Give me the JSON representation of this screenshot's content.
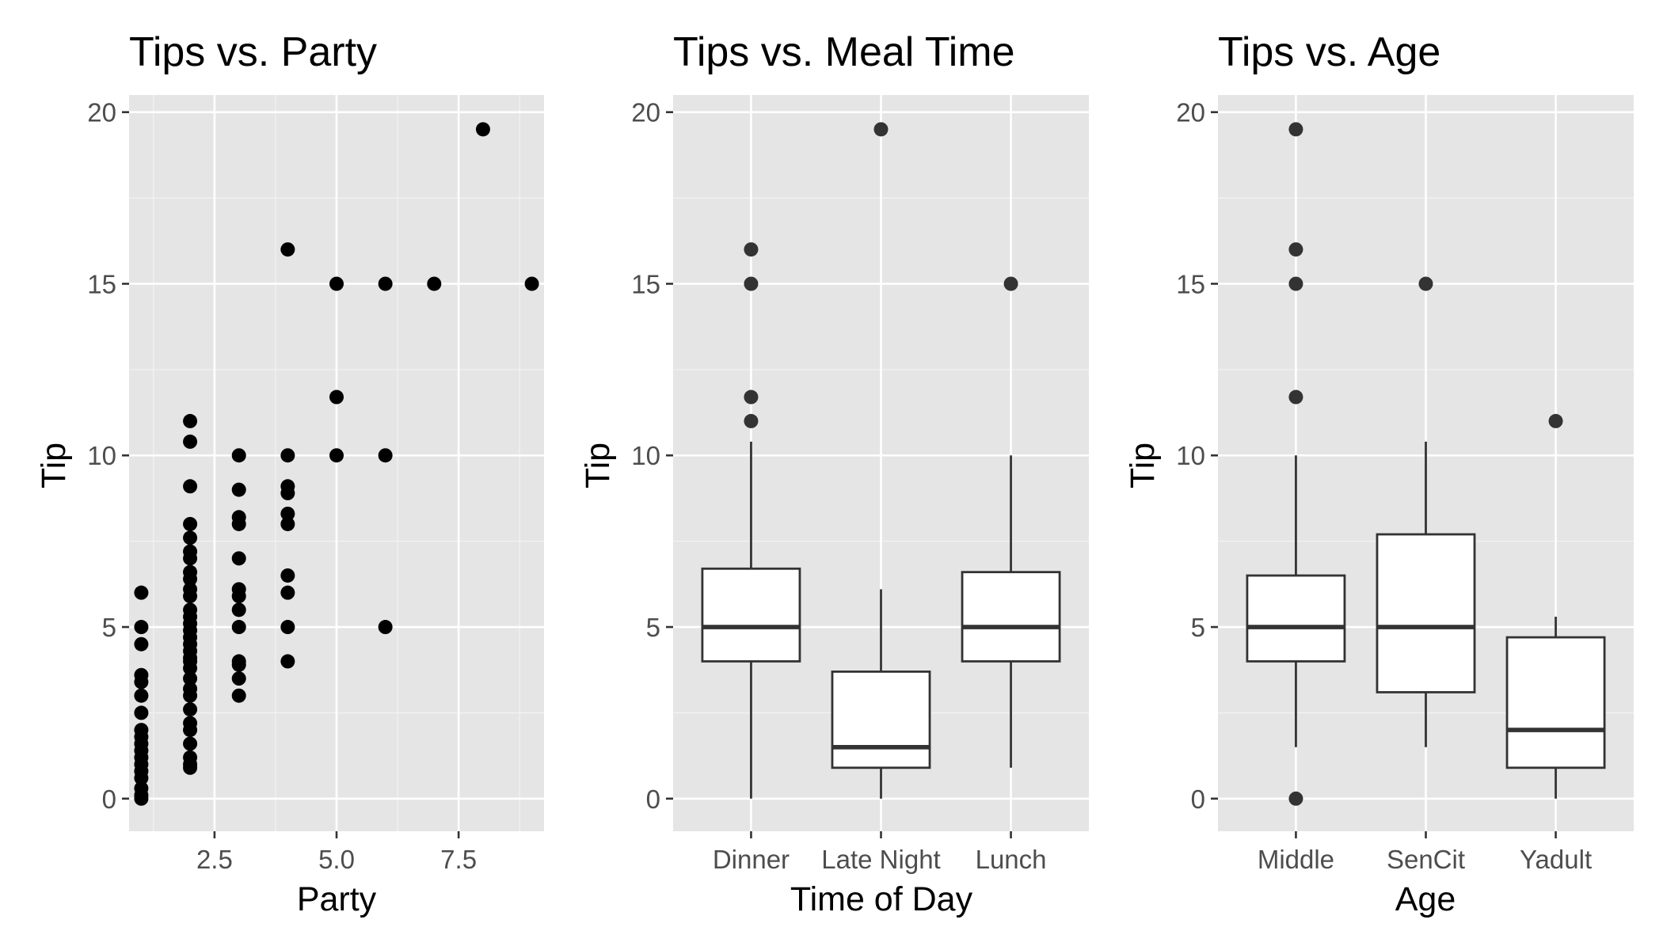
{
  "chart_data": [
    {
      "type": "scatter",
      "title": "Tips vs. Party",
      "xlabel": "Party",
      "ylabel": "Tip",
      "xlim": [
        0.75,
        9.25
      ],
      "ylim": [
        -0.95,
        20.5
      ],
      "xticks": [
        {
          "value": 2.5,
          "label": "2.5"
        },
        {
          "value": 5.0,
          "label": "5.0"
        },
        {
          "value": 7.5,
          "label": "7.5"
        }
      ],
      "yticks": [
        {
          "value": 0,
          "label": "0"
        },
        {
          "value": 5,
          "label": "5"
        },
        {
          "value": 10,
          "label": "10"
        },
        {
          "value": 15,
          "label": "15"
        },
        {
          "value": 20,
          "label": "20"
        }
      ],
      "grid": true,
      "points": [
        [
          1,
          6.0
        ],
        [
          1,
          5.0
        ],
        [
          1,
          4.5
        ],
        [
          1,
          3.6
        ],
        [
          1,
          3.4
        ],
        [
          1,
          3.0
        ],
        [
          1,
          2.5
        ],
        [
          1,
          2.0
        ],
        [
          1,
          1.8
        ],
        [
          1,
          1.6
        ],
        [
          1,
          1.4
        ],
        [
          1,
          1.2
        ],
        [
          1,
          1.0
        ],
        [
          1,
          0.8
        ],
        [
          1,
          0.6
        ],
        [
          1,
          0.3
        ],
        [
          1,
          0.1
        ],
        [
          1,
          0.0
        ],
        [
          2,
          11.0
        ],
        [
          2,
          10.4
        ],
        [
          2,
          9.1
        ],
        [
          2,
          8.0
        ],
        [
          2,
          7.6
        ],
        [
          2,
          7.2
        ],
        [
          2,
          7.0
        ],
        [
          2,
          6.6
        ],
        [
          2,
          6.4
        ],
        [
          2,
          6.1
        ],
        [
          2,
          5.9
        ],
        [
          2,
          5.5
        ],
        [
          2,
          5.3
        ],
        [
          2,
          5.1
        ],
        [
          2,
          4.9
        ],
        [
          2,
          4.7
        ],
        [
          2,
          4.5
        ],
        [
          2,
          4.3
        ],
        [
          2,
          4.1
        ],
        [
          2,
          4.0
        ],
        [
          2,
          3.8
        ],
        [
          2,
          3.5
        ],
        [
          2,
          3.2
        ],
        [
          2,
          3.0
        ],
        [
          2,
          2.6
        ],
        [
          2,
          2.2
        ],
        [
          2,
          2.0
        ],
        [
          2,
          1.6
        ],
        [
          2,
          1.2
        ],
        [
          2,
          1.0
        ],
        [
          2,
          0.9
        ],
        [
          3,
          10.0
        ],
        [
          3,
          9.0
        ],
        [
          3,
          8.2
        ],
        [
          3,
          8.0
        ],
        [
          3,
          7.0
        ],
        [
          3,
          6.1
        ],
        [
          3,
          5.9
        ],
        [
          3,
          5.5
        ],
        [
          3,
          5.0
        ],
        [
          3,
          4.0
        ],
        [
          3,
          3.9
        ],
        [
          3,
          3.5
        ],
        [
          3,
          3.0
        ],
        [
          4,
          16.0
        ],
        [
          4,
          10.0
        ],
        [
          4,
          9.1
        ],
        [
          4,
          8.9
        ],
        [
          4,
          8.3
        ],
        [
          4,
          8.0
        ],
        [
          4,
          6.5
        ],
        [
          4,
          6.0
        ],
        [
          4,
          5.0
        ],
        [
          4,
          4.0
        ],
        [
          5,
          15.0
        ],
        [
          5,
          11.7
        ],
        [
          5,
          10.0
        ],
        [
          6,
          15.0
        ],
        [
          6,
          10.0
        ],
        [
          6,
          5.0
        ],
        [
          7,
          15.0
        ],
        [
          8,
          19.5
        ],
        [
          9,
          15.0
        ]
      ]
    },
    {
      "type": "boxplot",
      "title": "Tips vs. Meal Time",
      "xlabel": "Time of Day",
      "ylabel": "Tip",
      "ylim": [
        -0.95,
        20.5
      ],
      "categories": [
        "Dinner",
        "Late Night",
        "Lunch"
      ],
      "yticks": [
        {
          "value": 0,
          "label": "0"
        },
        {
          "value": 5,
          "label": "5"
        },
        {
          "value": 10,
          "label": "10"
        },
        {
          "value": 15,
          "label": "15"
        },
        {
          "value": 20,
          "label": "20"
        }
      ],
      "grid": true,
      "boxes": [
        {
          "min": 0.0,
          "q1": 4.0,
          "median": 5.0,
          "q3": 6.7,
          "max": 10.4,
          "outliers": [
            16.0,
            15.0,
            11.7,
            11.0
          ]
        },
        {
          "min": 0.0,
          "q1": 0.9,
          "median": 1.5,
          "q3": 3.7,
          "max": 6.1,
          "outliers": [
            19.5
          ]
        },
        {
          "min": 0.9,
          "q1": 4.0,
          "median": 5.0,
          "q3": 6.6,
          "max": 10.0,
          "outliers": [
            15.0
          ]
        }
      ]
    },
    {
      "type": "boxplot",
      "title": "Tips vs. Age",
      "xlabel": "Age",
      "ylabel": "Tip",
      "ylim": [
        -0.95,
        20.5
      ],
      "categories": [
        "Middle",
        "SenCit",
        "Yadult"
      ],
      "yticks": [
        {
          "value": 0,
          "label": "0"
        },
        {
          "value": 5,
          "label": "5"
        },
        {
          "value": 10,
          "label": "10"
        },
        {
          "value": 15,
          "label": "15"
        },
        {
          "value": 20,
          "label": "20"
        }
      ],
      "grid": true,
      "boxes": [
        {
          "min": 1.5,
          "q1": 4.0,
          "median": 5.0,
          "q3": 6.5,
          "max": 10.0,
          "outliers": [
            19.5,
            16.0,
            15.0,
            11.7,
            0.0
          ]
        },
        {
          "min": 1.5,
          "q1": 3.1,
          "median": 5.0,
          "q3": 7.7,
          "max": 10.4,
          "outliers": [
            15.0
          ]
        },
        {
          "min": 0.0,
          "q1": 0.9,
          "median": 2.0,
          "q3": 4.7,
          "max": 5.3,
          "outliers": [
            11.0
          ]
        }
      ]
    }
  ]
}
